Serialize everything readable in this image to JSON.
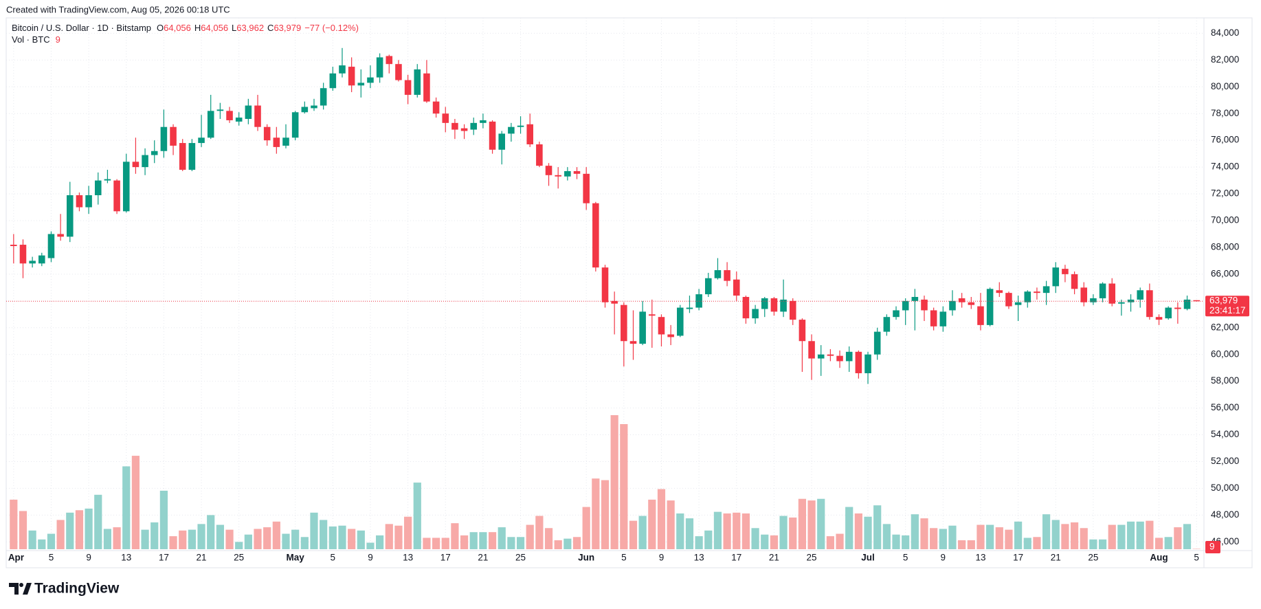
{
  "created": "Created with TradingView.com, Aug 05, 2026 00:18 UTC",
  "logo": "TradingView",
  "chart_data": {
    "type": "candlestick",
    "legend": {
      "symbol": "Bitcoin / U.S. Dollar · 1D · Bitstamp",
      "o_key": "O",
      "o": "64,056",
      "h_key": "H",
      "h": "64,056",
      "l_key": "L",
      "l": "63,962",
      "c_key": "C",
      "c": "63,979",
      "change": "−77 (−0.12%)"
    },
    "volume_label": "Vol · BTC",
    "volume_value": "9",
    "last_price": {
      "price": "63,979",
      "countdown": "23:41:17"
    },
    "colors": {
      "up": "#089981",
      "down": "#f23645",
      "volume_up": "#92d2cc",
      "volume_down": "#f7a9a7"
    },
    "grid": true,
    "xlim": [
      "2026-03-31T05:00:00Z",
      "2026-08-05T19:00:00Z"
    ],
    "ylim": [
      45400,
      85150
    ],
    "yticks": [
      {
        "value": 46000,
        "label": "46,000"
      },
      {
        "value": 48000,
        "label": "48,000"
      },
      {
        "value": 50000,
        "label": "50,000"
      },
      {
        "value": 52000,
        "label": "52,000"
      },
      {
        "value": 54000,
        "label": "54,000"
      },
      {
        "value": 56000,
        "label": "56,000"
      },
      {
        "value": 58000,
        "label": "58,000"
      },
      {
        "value": 60000,
        "label": "60,000"
      },
      {
        "value": 62000,
        "label": "62,000"
      },
      {
        "value": 64000,
        "label": "64,000"
      },
      {
        "value": 66000,
        "label": "66,000"
      },
      {
        "value": 68000,
        "label": "68,000"
      },
      {
        "value": 70000,
        "label": "70,000"
      },
      {
        "value": 72000,
        "label": "72,000"
      },
      {
        "value": 74000,
        "label": "74,000"
      },
      {
        "value": 76000,
        "label": "76,000"
      },
      {
        "value": 78000,
        "label": "78,000"
      },
      {
        "value": 80000,
        "label": "80,000"
      },
      {
        "value": 82000,
        "label": "82,000"
      },
      {
        "value": 84000,
        "label": "84,000"
      }
    ],
    "xticks": [
      {
        "value": "2026-04-01",
        "label": "Apr"
      },
      {
        "value": "2026-04-05",
        "label": "5"
      },
      {
        "value": "2026-04-09",
        "label": "9"
      },
      {
        "value": "2026-04-13",
        "label": "13"
      },
      {
        "value": "2026-04-17",
        "label": "17"
      },
      {
        "value": "2026-04-21",
        "label": "21"
      },
      {
        "value": "2026-04-25",
        "label": "25"
      },
      {
        "value": "2026-05-01",
        "label": "May"
      },
      {
        "value": "2026-05-05",
        "label": "5"
      },
      {
        "value": "2026-05-09",
        "label": "9"
      },
      {
        "value": "2026-05-13",
        "label": "13"
      },
      {
        "value": "2026-05-17",
        "label": "17"
      },
      {
        "value": "2026-05-21",
        "label": "21"
      },
      {
        "value": "2026-05-25",
        "label": "25"
      },
      {
        "value": "2026-06-01",
        "label": "Jun"
      },
      {
        "value": "2026-06-05",
        "label": "5"
      },
      {
        "value": "2026-06-09",
        "label": "9"
      },
      {
        "value": "2026-06-13",
        "label": "13"
      },
      {
        "value": "2026-06-17",
        "label": "17"
      },
      {
        "value": "2026-06-21",
        "label": "21"
      },
      {
        "value": "2026-06-25",
        "label": "25"
      },
      {
        "value": "2026-07-01",
        "label": "Jul"
      },
      {
        "value": "2026-07-05",
        "label": "5"
      },
      {
        "value": "2026-07-09",
        "label": "9"
      },
      {
        "value": "2026-07-13",
        "label": "13"
      },
      {
        "value": "2026-07-17",
        "label": "17"
      },
      {
        "value": "2026-07-21",
        "label": "21"
      },
      {
        "value": "2026-07-25",
        "label": "25"
      },
      {
        "value": "2026-08-01",
        "label": "Aug"
      },
      {
        "value": "2026-08-05",
        "label": "5"
      }
    ],
    "x": [
      "2026-04-01",
      "2026-04-02",
      "2026-04-03",
      "2026-04-04",
      "2026-04-05",
      "2026-04-06",
      "2026-04-07",
      "2026-04-08",
      "2026-04-09",
      "2026-04-10",
      "2026-04-11",
      "2026-04-12",
      "2026-04-13",
      "2026-04-14",
      "2026-04-15",
      "2026-04-16",
      "2026-04-17",
      "2026-04-18",
      "2026-04-19",
      "2026-04-20",
      "2026-04-21",
      "2026-04-22",
      "2026-04-23",
      "2026-04-24",
      "2026-04-25",
      "2026-04-26",
      "2026-04-27",
      "2026-04-28",
      "2026-04-29",
      "2026-04-30",
      "2026-05-01",
      "2026-05-02",
      "2026-05-03",
      "2026-05-04",
      "2026-05-05",
      "2026-05-06",
      "2026-05-07",
      "2026-05-08",
      "2026-05-09",
      "2026-05-10",
      "2026-05-11",
      "2026-05-12",
      "2026-05-13",
      "2026-05-14",
      "2026-05-15",
      "2026-05-16",
      "2026-05-17",
      "2026-05-18",
      "2026-05-19",
      "2026-05-20",
      "2026-05-21",
      "2026-05-22",
      "2026-05-23",
      "2026-05-24",
      "2026-05-25",
      "2026-05-26",
      "2026-05-27",
      "2026-05-28",
      "2026-05-29",
      "2026-05-30",
      "2026-05-31",
      "2026-06-01",
      "2026-06-02",
      "2026-06-03",
      "2026-06-04",
      "2026-06-05",
      "2026-06-06",
      "2026-06-07",
      "2026-06-08",
      "2026-06-09",
      "2026-06-10",
      "2026-06-11",
      "2026-06-12",
      "2026-06-13",
      "2026-06-14",
      "2026-06-15",
      "2026-06-16",
      "2026-06-17",
      "2026-06-18",
      "2026-06-19",
      "2026-06-20",
      "2026-06-21",
      "2026-06-22",
      "2026-06-23",
      "2026-06-24",
      "2026-06-25",
      "2026-06-26",
      "2026-06-27",
      "2026-06-28",
      "2026-06-29",
      "2026-06-30",
      "2026-07-01",
      "2026-07-02",
      "2026-07-03",
      "2026-07-04",
      "2026-07-05",
      "2026-07-06",
      "2026-07-07",
      "2026-07-08",
      "2026-07-09",
      "2026-07-10",
      "2026-07-11",
      "2026-07-12",
      "2026-07-13",
      "2026-07-14",
      "2026-07-15",
      "2026-07-16",
      "2026-07-17",
      "2026-07-18",
      "2026-07-19",
      "2026-07-20",
      "2026-07-21",
      "2026-07-22",
      "2026-07-23",
      "2026-07-24",
      "2026-07-25",
      "2026-07-26",
      "2026-07-27",
      "2026-07-28",
      "2026-07-29",
      "2026-07-30",
      "2026-07-31",
      "2026-08-01",
      "2026-08-02",
      "2026-08-03",
      "2026-08-04",
      "2026-08-05"
    ],
    "candles": [
      [
        68200,
        69000,
        66800,
        68100
      ],
      [
        68200,
        68600,
        65700,
        66800
      ],
      [
        66800,
        67300,
        66500,
        67000
      ],
      [
        66800,
        67600,
        66600,
        67400
      ],
      [
        67200,
        69200,
        66900,
        69000
      ],
      [
        69000,
        70500,
        68500,
        68800
      ],
      [
        68800,
        72900,
        68400,
        71900
      ],
      [
        71900,
        72100,
        70700,
        71000
      ],
      [
        71000,
        72600,
        70500,
        71900
      ],
      [
        71900,
        73600,
        71200,
        73000
      ],
      [
        73000,
        73800,
        72800,
        73100
      ],
      [
        73000,
        73100,
        70500,
        70700
      ],
      [
        70700,
        75000,
        70600,
        74400
      ],
      [
        74400,
        76200,
        73500,
        74000
      ],
      [
        74000,
        75400,
        73400,
        74900
      ],
      [
        74900,
        76000,
        74300,
        75200
      ],
      [
        75200,
        78300,
        74700,
        77000
      ],
      [
        77000,
        77200,
        74900,
        75600
      ],
      [
        75800,
        76100,
        73700,
        73800
      ],
      [
        73800,
        76100,
        73700,
        75800
      ],
      [
        75800,
        77900,
        75500,
        76200
      ],
      [
        76200,
        79400,
        76100,
        78200
      ],
      [
        78200,
        78800,
        77600,
        78300
      ],
      [
        78200,
        78500,
        77300,
        77500
      ],
      [
        77400,
        78100,
        77100,
        77700
      ],
      [
        77600,
        79100,
        77200,
        78600
      ],
      [
        78600,
        79400,
        76700,
        77000
      ],
      [
        77000,
        77200,
        75600,
        76000
      ],
      [
        76200,
        77000,
        75000,
        75500
      ],
      [
        75600,
        77200,
        75400,
        76200
      ],
      [
        76200,
        78200,
        76000,
        78100
      ],
      [
        78100,
        78900,
        78000,
        78500
      ],
      [
        78400,
        79100,
        78200,
        78600
      ],
      [
        78600,
        80300,
        78300,
        79900
      ],
      [
        79900,
        81500,
        79700,
        81000
      ],
      [
        81000,
        82900,
        80700,
        81600
      ],
      [
        81500,
        82200,
        79600,
        80100
      ],
      [
        80100,
        81300,
        79200,
        80300
      ],
      [
        80300,
        81600,
        79900,
        80700
      ],
      [
        80700,
        82500,
        80300,
        82200
      ],
      [
        82300,
        82400,
        81000,
        81700
      ],
      [
        81700,
        82000,
        80400,
        80500
      ],
      [
        80500,
        80900,
        78700,
        79400
      ],
      [
        79400,
        81700,
        79200,
        81300
      ],
      [
        81000,
        82000,
        78800,
        78900
      ],
      [
        78900,
        79200,
        77700,
        78000
      ],
      [
        78000,
        78500,
        76600,
        77300
      ],
      [
        77300,
        77600,
        76100,
        76800
      ],
      [
        76900,
        77200,
        76100,
        76700
      ],
      [
        76800,
        77700,
        76400,
        77300
      ],
      [
        77300,
        78000,
        76900,
        77500
      ],
      [
        77400,
        77500,
        75000,
        75300
      ],
      [
        75300,
        76700,
        74200,
        76500
      ],
      [
        76500,
        77300,
        75900,
        77000
      ],
      [
        77000,
        77800,
        76500,
        77100
      ],
      [
        77200,
        78000,
        75500,
        75700
      ],
      [
        75700,
        75900,
        74000,
        74100
      ],
      [
        74100,
        74300,
        72600,
        73400
      ],
      [
        73400,
        74000,
        72400,
        73300
      ],
      [
        73300,
        74000,
        73000,
        73700
      ],
      [
        73700,
        74000,
        73100,
        73500
      ],
      [
        73500,
        74000,
        70800,
        71300
      ],
      [
        71300,
        71400,
        66200,
        66500
      ],
      [
        66500,
        66700,
        63500,
        63900
      ],
      [
        64000,
        64700,
        61500,
        63800
      ],
      [
        63700,
        63900,
        59100,
        61000
      ],
      [
        61000,
        63300,
        59600,
        60800
      ],
      [
        60800,
        64000,
        60700,
        63200
      ],
      [
        63000,
        64100,
        60500,
        62900
      ],
      [
        62800,
        63000,
        60600,
        61500
      ],
      [
        61500,
        62200,
        60700,
        61300
      ],
      [
        61400,
        63700,
        61300,
        63500
      ],
      [
        63400,
        64400,
        63100,
        63500
      ],
      [
        63500,
        64900,
        63300,
        64500
      ],
      [
        64500,
        66100,
        64300,
        65700
      ],
      [
        65700,
        67200,
        65600,
        66300
      ],
      [
        66300,
        66900,
        65100,
        65500
      ],
      [
        65600,
        66200,
        64000,
        64400
      ],
      [
        64300,
        64400,
        62300,
        62700
      ],
      [
        62700,
        63700,
        62300,
        63400
      ],
      [
        63400,
        64300,
        62800,
        64200
      ],
      [
        64200,
        64300,
        62900,
        63200
      ],
      [
        63200,
        65600,
        62800,
        64100
      ],
      [
        64000,
        64200,
        62200,
        62600
      ],
      [
        62600,
        62700,
        58700,
        61000
      ],
      [
        61000,
        61500,
        58100,
        59700
      ],
      [
        59700,
        60700,
        58400,
        60000
      ],
      [
        60000,
        60400,
        59500,
        59900
      ],
      [
        59900,
        60300,
        59000,
        59500
      ],
      [
        59500,
        60600,
        58700,
        60200
      ],
      [
        60200,
        60300,
        58200,
        58600
      ],
      [
        58600,
        60200,
        57800,
        60000
      ],
      [
        60000,
        62000,
        59600,
        61700
      ],
      [
        61700,
        63000,
        61400,
        62800
      ],
      [
        62800,
        63600,
        62600,
        63300
      ],
      [
        63300,
        64200,
        62200,
        64000
      ],
      [
        64000,
        64900,
        61800,
        64300
      ],
      [
        64100,
        64400,
        62500,
        63300
      ],
      [
        63300,
        63500,
        61800,
        62100
      ],
      [
        62100,
        63600,
        61700,
        63200
      ],
      [
        63300,
        64800,
        62900,
        64000
      ],
      [
        64200,
        64600,
        63500,
        63900
      ],
      [
        63900,
        64300,
        63400,
        63700
      ],
      [
        63600,
        64600,
        61800,
        62200
      ],
      [
        62200,
        65000,
        62100,
        64900
      ],
      [
        64800,
        65400,
        64300,
        64600
      ],
      [
        64600,
        64700,
        63400,
        63600
      ],
      [
        63700,
        64400,
        62500,
        63900
      ],
      [
        63900,
        64800,
        63500,
        64700
      ],
      [
        64700,
        65000,
        64100,
        64600
      ],
      [
        64600,
        65500,
        63700,
        65100
      ],
      [
        65100,
        66900,
        64600,
        66500
      ],
      [
        66400,
        66700,
        65400,
        66000
      ],
      [
        66000,
        66200,
        64500,
        64900
      ],
      [
        65000,
        65400,
        63600,
        63900
      ],
      [
        63900,
        64500,
        63700,
        64200
      ],
      [
        64200,
        65400,
        63900,
        65300
      ],
      [
        65300,
        65700,
        63600,
        63800
      ],
      [
        63800,
        64100,
        62900,
        63900
      ],
      [
        63900,
        64500,
        63200,
        64100
      ],
      [
        64100,
        65000,
        63500,
        64800
      ],
      [
        64800,
        65300,
        62600,
        62800
      ],
      [
        62800,
        63000,
        62200,
        62600
      ],
      [
        62700,
        63600,
        62600,
        63500
      ],
      [
        63500,
        63900,
        62300,
        63400
      ],
      [
        63400,
        64400,
        63300,
        64100
      ],
      [
        64056,
        64056,
        63962,
        63979
      ]
    ],
    "volume": [
      1220,
      940,
      460,
      240,
      380,
      720,
      900,
      960,
      1000,
      1340,
      500,
      540,
      2040,
      2300,
      480,
      660,
      1440,
      320,
      460,
      480,
      620,
      840,
      600,
      480,
      180,
      360,
      500,
      540,
      680,
      380,
      480,
      300,
      900,
      720,
      560,
      580,
      500,
      460,
      160,
      340,
      620,
      580,
      800,
      1640,
      280,
      280,
      280,
      640,
      340,
      420,
      420,
      420,
      540,
      300,
      300,
      600,
      820,
      520,
      220,
      260,
      300,
      1040,
      1740,
      1700,
      3300,
      3080,
      700,
      820,
      1220,
      1480,
      1200,
      880,
      760,
      320,
      460,
      920,
      880,
      900,
      880,
      520,
      360,
      340,
      820,
      780,
      1240,
      1200,
      1240,
      320,
      380,
      1040,
      880,
      800,
      1080,
      620,
      360,
      340,
      860,
      760,
      520,
      500,
      580,
      220,
      220,
      600,
      600,
      540,
      480,
      680,
      280,
      300,
      860,
      720,
      620,
      660,
      520,
      240,
      240,
      600,
      600,
      680,
      680,
      700,
      280,
      300,
      540,
      620,
      9
    ]
  }
}
